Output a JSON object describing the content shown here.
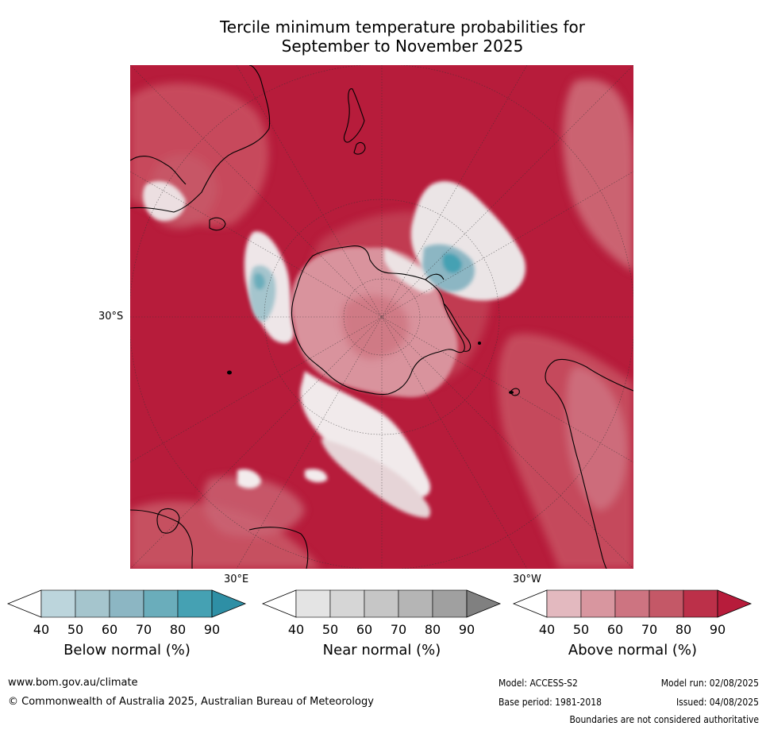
{
  "title": "Tercile minimum temperature probabilities for September to November 2025",
  "title_line1": "Tercile minimum temperature probabilities for",
  "title_line2": "September to November 2025",
  "map": {
    "lat_label": "30°S",
    "lon_label_east": "30°E",
    "lon_label_west": "30°W",
    "dominant_color": "#b71c3b"
  },
  "colorbars": [
    {
      "title": "Below normal (%)",
      "ticks": [
        "40",
        "50",
        "60",
        "70",
        "80",
        "90"
      ],
      "colors": [
        "#ffffff",
        "#bcd5dc",
        "#a5c5cd",
        "#8cb6c3",
        "#6aadbb",
        "#45a1b3",
        "#2e8fa5"
      ]
    },
    {
      "title": "Near normal (%)",
      "ticks": [
        "40",
        "50",
        "60",
        "70",
        "80",
        "90"
      ],
      "colors": [
        "#ffffff",
        "#e4e4e4",
        "#d6d6d6",
        "#c6c6c6",
        "#b5b5b5",
        "#a0a0a0",
        "#808080"
      ]
    },
    {
      "title": "Above normal (%)",
      "ticks": [
        "40",
        "50",
        "60",
        "70",
        "80",
        "90"
      ],
      "colors": [
        "#ffffff",
        "#e3b9bf",
        "#d8969f",
        "#cd7481",
        "#c45867",
        "#bc3049",
        "#b71c3b"
      ]
    }
  ],
  "footer": {
    "website": "www.bom.gov.au/climate",
    "copyright": "© Commonwealth of Australia 2025, Australian Bureau of Meteorology",
    "model": "Model: ACCESS-S2",
    "model_run": "Model run: 02/08/2025",
    "base_period": "Base period: 1981-2018",
    "issued": "Issued: 04/08/2025",
    "disclaimer": "Boundaries are not considered authoritative"
  }
}
